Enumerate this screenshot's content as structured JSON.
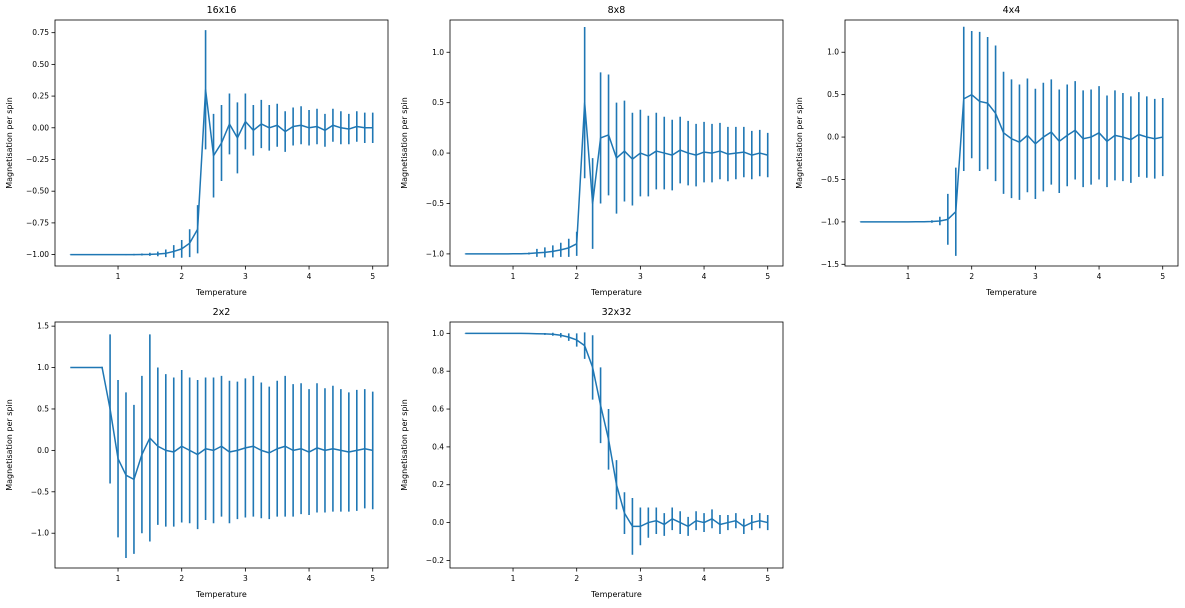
{
  "figure": {
    "background": "#ffffff",
    "line_color": "#1f77b4",
    "spine_color": "#000000"
  },
  "chart_data": [
    {
      "id": "16x16",
      "type": "line",
      "title": "16x16",
      "xlabel": "Temperature",
      "ylabel": "Magnetisation per spin",
      "legend": "none",
      "grid": false,
      "xlim": [
        0.01,
        5.24
      ],
      "ylim": [
        -1.09,
        0.85
      ],
      "xticks": [
        1,
        2,
        3,
        4,
        5
      ],
      "xtick_labels": [
        "1",
        "2",
        "3",
        "4",
        "5"
      ],
      "yticks": [
        -1.0,
        -0.75,
        -0.5,
        -0.25,
        0.0,
        0.25,
        0.5,
        0.75
      ],
      "ytick_labels": [
        "−1.00",
        "−0.75",
        "−0.50",
        "−0.25",
        "0.00",
        "0.25",
        "0.50",
        "0.75"
      ],
      "x": [
        0.25,
        0.375,
        0.5,
        0.625,
        0.75,
        0.875,
        1.0,
        1.125,
        1.25,
        1.375,
        1.5,
        1.625,
        1.75,
        1.875,
        2.0,
        2.125,
        2.25,
        2.375,
        2.5,
        2.625,
        2.75,
        2.875,
        3.0,
        3.125,
        3.25,
        3.375,
        3.5,
        3.625,
        3.75,
        3.875,
        4.0,
        4.125,
        4.25,
        4.375,
        4.5,
        4.625,
        4.75,
        4.875,
        5.0
      ],
      "y": [
        -1.0,
        -1.0,
        -1.0,
        -1.0,
        -1.0,
        -1.0,
        -1.0,
        -1.0,
        -1.0,
        -0.999,
        -0.998,
        -0.995,
        -0.99,
        -0.975,
        -0.955,
        -0.91,
        -0.8,
        0.3,
        -0.22,
        -0.12,
        0.03,
        -0.08,
        0.05,
        -0.02,
        0.03,
        0.0,
        0.02,
        -0.03,
        0.01,
        0.02,
        0.0,
        0.01,
        -0.02,
        0.02,
        0.0,
        -0.01,
        0.01,
        0.0,
        0.0
      ],
      "yerr": [
        0.001,
        0.001,
        0.001,
        0.002,
        0.002,
        0.003,
        0.003,
        0.004,
        0.006,
        0.008,
        0.012,
        0.018,
        0.03,
        0.05,
        0.07,
        0.11,
        0.19,
        0.47,
        0.33,
        0.3,
        0.24,
        0.28,
        0.22,
        0.2,
        0.19,
        0.18,
        0.17,
        0.16,
        0.15,
        0.15,
        0.14,
        0.14,
        0.13,
        0.13,
        0.13,
        0.12,
        0.12,
        0.12,
        0.12
      ]
    },
    {
      "id": "8x8",
      "type": "line",
      "title": "8x8",
      "xlabel": "Temperature",
      "ylabel": "Magnetisation per spin",
      "legend": "none",
      "grid": false,
      "xlim": [
        0.01,
        5.24
      ],
      "ylim": [
        -1.12,
        1.32
      ],
      "xticks": [
        1,
        2,
        3,
        4,
        5
      ],
      "xtick_labels": [
        "1",
        "2",
        "3",
        "4",
        "5"
      ],
      "yticks": [
        -1.0,
        -0.5,
        0.0,
        0.5,
        1.0
      ],
      "ytick_labels": [
        "−1.0",
        "−0.5",
        "0.0",
        "0.5",
        "1.0"
      ],
      "x": [
        0.25,
        0.375,
        0.5,
        0.625,
        0.75,
        0.875,
        1.0,
        1.125,
        1.25,
        1.375,
        1.5,
        1.625,
        1.75,
        1.875,
        2.0,
        2.125,
        2.25,
        2.375,
        2.5,
        2.625,
        2.75,
        2.875,
        3.0,
        3.125,
        3.25,
        3.375,
        3.5,
        3.625,
        3.75,
        3.875,
        4.0,
        4.125,
        4.25,
        4.375,
        4.5,
        4.625,
        4.75,
        4.875,
        5.0
      ],
      "y": [
        -1.0,
        -1.0,
        -1.0,
        -1.0,
        -1.0,
        -1.0,
        -0.999,
        -0.998,
        -0.996,
        -0.99,
        -0.985,
        -0.975,
        -0.96,
        -0.94,
        -0.9,
        0.5,
        -0.5,
        0.15,
        0.18,
        -0.05,
        0.02,
        -0.06,
        0.0,
        -0.03,
        0.02,
        0.0,
        -0.02,
        0.03,
        0.0,
        -0.02,
        0.01,
        0.0,
        0.02,
        -0.01,
        0.0,
        0.01,
        -0.02,
        0.0,
        -0.02
      ],
      "yerr": [
        0.002,
        0.002,
        0.002,
        0.003,
        0.003,
        0.004,
        0.005,
        0.006,
        0.01,
        0.04,
        0.05,
        0.06,
        0.07,
        0.09,
        0.12,
        0.75,
        0.45,
        0.65,
        0.6,
        0.55,
        0.5,
        0.46,
        0.43,
        0.4,
        0.38,
        0.36,
        0.35,
        0.33,
        0.32,
        0.31,
        0.3,
        0.29,
        0.28,
        0.27,
        0.26,
        0.25,
        0.24,
        0.23,
        0.22
      ]
    },
    {
      "id": "4x4",
      "type": "line",
      "title": "4x4",
      "xlabel": "Temperature",
      "ylabel": "Magnetisation per spin",
      "legend": "none",
      "grid": false,
      "xlim": [
        0.01,
        5.24
      ],
      "ylim": [
        -1.52,
        1.38
      ],
      "xticks": [
        1,
        2,
        3,
        4,
        5
      ],
      "xtick_labels": [
        "1",
        "2",
        "3",
        "4",
        "5"
      ],
      "yticks": [
        -1.5,
        -1.0,
        -0.5,
        0.0,
        0.5,
        1.0
      ],
      "ytick_labels": [
        "−1.5",
        "−1.0",
        "−0.5",
        "0.0",
        "0.5",
        "1.0"
      ],
      "x": [
        0.25,
        0.375,
        0.5,
        0.625,
        0.75,
        0.875,
        1.0,
        1.125,
        1.25,
        1.375,
        1.5,
        1.625,
        1.75,
        1.875,
        2.0,
        2.125,
        2.25,
        2.375,
        2.5,
        2.625,
        2.75,
        2.875,
        3.0,
        3.125,
        3.25,
        3.375,
        3.5,
        3.625,
        3.75,
        3.875,
        4.0,
        4.125,
        4.25,
        4.375,
        4.5,
        4.625,
        4.75,
        4.875,
        5.0
      ],
      "y": [
        -1.0,
        -1.0,
        -1.0,
        -1.0,
        -1.0,
        -1.0,
        -1.0,
        -0.999,
        -0.998,
        -0.995,
        -0.99,
        -0.97,
        -0.88,
        0.45,
        0.5,
        0.42,
        0.4,
        0.28,
        0.05,
        -0.02,
        -0.06,
        0.02,
        -0.08,
        0.0,
        0.06,
        -0.05,
        0.02,
        0.08,
        -0.02,
        0.0,
        0.05,
        -0.05,
        0.02,
        0.0,
        -0.03,
        0.03,
        0.0,
        -0.02,
        0.0
      ],
      "yerr": [
        0.001,
        0.001,
        0.002,
        0.002,
        0.003,
        0.003,
        0.004,
        0.005,
        0.008,
        0.015,
        0.05,
        0.3,
        0.52,
        0.85,
        0.75,
        0.82,
        0.78,
        0.8,
        0.72,
        0.7,
        0.68,
        0.67,
        0.65,
        0.64,
        0.62,
        0.61,
        0.6,
        0.58,
        0.57,
        0.56,
        0.55,
        0.54,
        0.53,
        0.52,
        0.51,
        0.5,
        0.48,
        0.47,
        0.46
      ]
    },
    {
      "id": "2x2",
      "type": "line",
      "title": "2x2",
      "xlabel": "Temperature",
      "ylabel": "Magnetisation per spin",
      "legend": "none",
      "grid": false,
      "xlim": [
        0.01,
        5.24
      ],
      "ylim": [
        -1.42,
        1.55
      ],
      "xticks": [
        1,
        2,
        3,
        4,
        5
      ],
      "xtick_labels": [
        "1",
        "2",
        "3",
        "4",
        "5"
      ],
      "yticks": [
        -1.0,
        -0.5,
        0.0,
        0.5,
        1.0,
        1.5
      ],
      "ytick_labels": [
        "−1.0",
        "−0.5",
        "0.0",
        "0.5",
        "1.0",
        "1.5"
      ],
      "x": [
        0.25,
        0.375,
        0.5,
        0.625,
        0.75,
        0.875,
        1.0,
        1.125,
        1.25,
        1.375,
        1.5,
        1.625,
        1.75,
        1.875,
        2.0,
        2.125,
        2.25,
        2.375,
        2.5,
        2.625,
        2.75,
        2.875,
        3.0,
        3.125,
        3.25,
        3.375,
        3.5,
        3.625,
        3.75,
        3.875,
        4.0,
        4.125,
        4.25,
        4.375,
        4.5,
        4.625,
        4.75,
        4.875,
        5.0
      ],
      "y": [
        1.0,
        1.0,
        1.0,
        1.0,
        1.0,
        0.5,
        -0.1,
        -0.3,
        -0.35,
        -0.05,
        0.15,
        0.05,
        0.0,
        -0.02,
        0.05,
        0.0,
        -0.05,
        0.02,
        0.0,
        0.05,
        -0.02,
        0.0,
        0.03,
        0.05,
        0.0,
        -0.03,
        0.02,
        0.05,
        0.0,
        0.02,
        -0.02,
        0.03,
        0.0,
        0.02,
        0.0,
        -0.02,
        0.0,
        0.02,
        0.0
      ],
      "yerr": [
        0.0,
        0.0,
        0.0,
        0.001,
        0.01,
        0.9,
        0.95,
        1.0,
        0.9,
        0.95,
        1.25,
        0.95,
        0.92,
        0.9,
        0.92,
        0.88,
        0.9,
        0.86,
        0.88,
        0.85,
        0.86,
        0.83,
        0.84,
        0.85,
        0.82,
        0.8,
        0.82,
        0.85,
        0.8,
        0.79,
        0.76,
        0.78,
        0.75,
        0.76,
        0.74,
        0.72,
        0.73,
        0.72,
        0.71
      ]
    },
    {
      "id": "32x32",
      "type": "line",
      "title": "32x32",
      "xlabel": "Temperature",
      "ylabel": "Magnetisation per spin",
      "legend": "none",
      "grid": false,
      "xlim": [
        0.01,
        5.24
      ],
      "ylim": [
        -0.24,
        1.06
      ],
      "xticks": [
        1,
        2,
        3,
        4,
        5
      ],
      "xtick_labels": [
        "1",
        "2",
        "3",
        "4",
        "5"
      ],
      "yticks": [
        -0.2,
        0.0,
        0.2,
        0.4,
        0.6,
        0.8,
        1.0
      ],
      "ytick_labels": [
        "−0.2",
        "0.0",
        "0.2",
        "0.4",
        "0.6",
        "0.8",
        "1.0"
      ],
      "x": [
        0.25,
        0.375,
        0.5,
        0.625,
        0.75,
        0.875,
        1.0,
        1.125,
        1.25,
        1.375,
        1.5,
        1.625,
        1.75,
        1.875,
        2.0,
        2.125,
        2.25,
        2.375,
        2.5,
        2.625,
        2.75,
        2.875,
        3.0,
        3.125,
        3.25,
        3.375,
        3.5,
        3.625,
        3.75,
        3.875,
        4.0,
        4.125,
        4.25,
        4.375,
        4.5,
        4.625,
        4.75,
        4.875,
        5.0
      ],
      "y": [
        1.0,
        1.0,
        1.0,
        1.0,
        1.0,
        1.0,
        1.0,
        1.0,
        0.999,
        0.998,
        0.997,
        0.995,
        0.99,
        0.98,
        0.965,
        0.935,
        0.82,
        0.62,
        0.44,
        0.2,
        0.05,
        -0.02,
        -0.02,
        0.0,
        0.01,
        -0.01,
        0.02,
        0.0,
        -0.02,
        0.01,
        0.0,
        0.02,
        -0.01,
        0.0,
        0.01,
        -0.02,
        0.0,
        0.01,
        0.0
      ],
      "yerr": [
        0.001,
        0.001,
        0.001,
        0.001,
        0.001,
        0.001,
        0.001,
        0.002,
        0.002,
        0.003,
        0.005,
        0.008,
        0.012,
        0.02,
        0.035,
        0.07,
        0.17,
        0.2,
        0.16,
        0.13,
        0.11,
        0.15,
        0.1,
        0.08,
        0.07,
        0.06,
        0.06,
        0.06,
        0.05,
        0.05,
        0.05,
        0.05,
        0.05,
        0.04,
        0.04,
        0.04,
        0.04,
        0.04,
        0.04
      ]
    }
  ]
}
